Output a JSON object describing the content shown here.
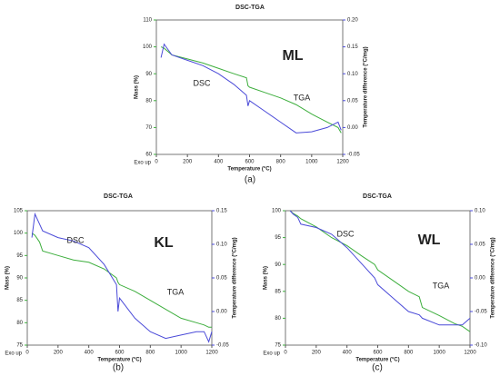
{
  "chart_data": [
    {
      "type": "line",
      "title": "DSC-TGA",
      "caption": "(a)",
      "label": "ML",
      "note": "Exo up",
      "xlabel": "Temperature (°C)",
      "ylabel": "Mass (%)",
      "y2label": "Temperature difference (°C/mg)",
      "x": [
        30,
        50,
        100,
        200,
        300,
        400,
        500,
        580,
        590,
        600,
        700,
        800,
        900,
        1000,
        1100,
        1170,
        1190
      ],
      "xlim": [
        0,
        1200
      ],
      "xticks": [
        0,
        200,
        400,
        600,
        800,
        1000,
        1200
      ],
      "ylim": [
        60,
        110
      ],
      "yticks": [
        60,
        70,
        80,
        90,
        100,
        110
      ],
      "y2lim": [
        -0.05,
        0.2
      ],
      "y2ticks": [
        -0.05,
        {
          "value": 0,
          "label": "0.00"
        },
        0.05,
        {
          "value": 0.1,
          "label": "0.10"
        },
        0.15,
        {
          "value": 0.2,
          "label": "0.20"
        }
      ],
      "series": [
        {
          "name": "TGA",
          "color": "#3dae3d",
          "values": [
            100,
            99.5,
            97,
            95.5,
            94,
            92,
            90,
            88.5,
            85.5,
            85,
            83,
            81,
            78.5,
            75,
            72,
            70,
            68
          ]
        },
        {
          "name": "DSC",
          "color": "#4a4ad8",
          "axis": "y2",
          "values": [
            0.13,
            0.155,
            0.135,
            0.125,
            0.115,
            0.1,
            0.08,
            0.06,
            0.04,
            0.05,
            0.03,
            0.01,
            -0.01,
            -0.008,
            0,
            0.01,
            -0.005
          ]
        }
      ]
    },
    {
      "type": "line",
      "title": "DSC-TGA",
      "caption": "(b)",
      "label": "KL",
      "note": "Exo up",
      "xlabel": "Temperature (°C)",
      "ylabel": "Mass (%)",
      "y2label": "Temperature difference (°C/mg)",
      "x": [
        30,
        50,
        80,
        100,
        200,
        300,
        400,
        500,
        580,
        590,
        600,
        700,
        800,
        900,
        1000,
        1100,
        1150,
        1180,
        1200
      ],
      "xlim": [
        0,
        1200
      ],
      "xticks": [
        0,
        200,
        400,
        600,
        800,
        1000,
        1200
      ],
      "ylim": [
        75,
        105
      ],
      "yticks": [
        75,
        80,
        85,
        90,
        95,
        100,
        105
      ],
      "y2lim": [
        -0.05,
        0.15
      ],
      "y2ticks": [
        -0.05,
        {
          "value": 0,
          "label": "0.00"
        },
        0.05,
        {
          "value": 0.1,
          "label": "0.10"
        },
        0.15
      ],
      "series": [
        {
          "name": "TGA",
          "color": "#3dae3d",
          "values": [
            100,
            99.5,
            98,
            96,
            95,
            94,
            93.5,
            92,
            90,
            89,
            88.5,
            87,
            85,
            83,
            81,
            80,
            79.5,
            79,
            79
          ]
        },
        {
          "name": "DSC",
          "color": "#4a4ad8",
          "axis": "y2",
          "values": [
            0.11,
            0.145,
            0.13,
            0.12,
            0.11,
            0.105,
            0.095,
            0.07,
            0.04,
            0.0,
            0.02,
            -0.01,
            -0.03,
            -0.04,
            -0.035,
            -0.03,
            -0.03,
            -0.045,
            -0.03
          ]
        }
      ]
    },
    {
      "type": "line",
      "title": "DSC-TGA",
      "caption": "(c)",
      "label": "WL",
      "note": "Exo up",
      "xlabel": "Temperature (°C)",
      "ylabel": "Mass (%)",
      "y2label": "Temperature difference (°C/mg)",
      "x": [
        30,
        50,
        80,
        100,
        200,
        300,
        400,
        500,
        580,
        590,
        600,
        700,
        800,
        870,
        890,
        1000,
        1100,
        1150,
        1200
      ],
      "xlim": [
        0,
        1200
      ],
      "xticks": [
        0,
        200,
        400,
        600,
        800,
        1000,
        1200
      ],
      "ylim": [
        75,
        100
      ],
      "yticks": [
        75,
        80,
        85,
        90,
        95,
        100
      ],
      "y2lim": [
        -0.1,
        0.1
      ],
      "y2ticks": [
        {
          "value": -0.1,
          "label": "-0.10"
        },
        -0.05,
        {
          "value": 0,
          "label": "0.00"
        },
        0.05,
        {
          "value": 0.1,
          "label": "0.10"
        }
      ],
      "series": [
        {
          "name": "TGA",
          "color": "#3dae3d",
          "values": [
            100,
            99.5,
            99,
            98.5,
            97,
            95,
            93.5,
            91.5,
            90,
            89.5,
            89,
            87,
            85,
            84,
            82,
            80.5,
            79,
            78.5,
            77.5
          ]
        },
        {
          "name": "DSC",
          "color": "#4a4ad8",
          "axis": "y2",
          "values": [
            0.1,
            0.095,
            0.09,
            0.08,
            0.075,
            0.065,
            0.045,
            0.02,
            0,
            -0.005,
            -0.01,
            -0.03,
            -0.05,
            -0.055,
            -0.06,
            -0.07,
            -0.07,
            -0.07,
            -0.06
          ]
        }
      ]
    }
  ]
}
